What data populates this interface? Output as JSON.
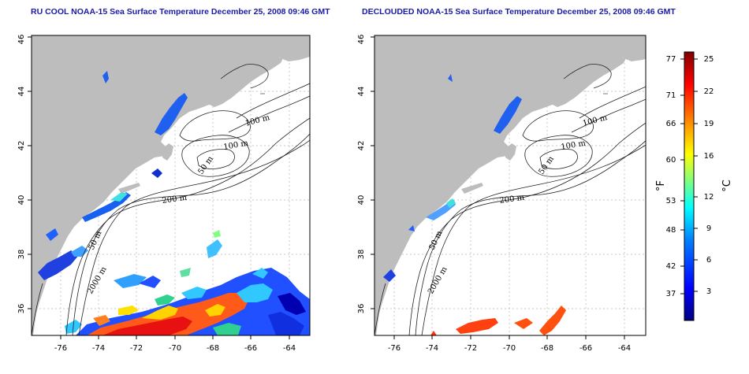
{
  "panels": [
    {
      "title": "RU COOL NOAA-15 Sea Surface Temperature December 25, 2008 09:46 GMT",
      "contour_labels": [
        "100 m",
        "100 m",
        "50 m",
        "200 m",
        "50 m",
        "2000 m"
      ]
    },
    {
      "title": "DECLOUDED NOAA-15 Sea Surface Temperature December 25, 2008 09:46 GMT",
      "contour_labels": [
        "100 m",
        "100 m",
        "50 m",
        "200 m",
        "50 m",
        "2000 m"
      ]
    }
  ],
  "axes": {
    "x_ticks": [
      "-76",
      "-74",
      "-72",
      "-70",
      "-68",
      "-66",
      "-64"
    ],
    "y_ticks": [
      "36",
      "38",
      "40",
      "42",
      "44",
      "46"
    ],
    "lon_range": [
      -77,
      -63
    ],
    "lat_range": [
      35,
      46
    ]
  },
  "colorbar": {
    "fahrenheit_ticks": [
      "77",
      "71",
      "66",
      "60",
      "53",
      "48",
      "42",
      "37"
    ],
    "celsius_ticks": [
      "25",
      "22",
      "19",
      "16",
      "12",
      "9",
      "6",
      "3"
    ],
    "fahrenheit_unit": "°F",
    "celsius_unit": "°C",
    "colors": [
      "#000080",
      "#0000ff",
      "#0080ff",
      "#00ffff",
      "#80ff80",
      "#ffff00",
      "#ff8000",
      "#ff0000",
      "#800000"
    ]
  },
  "colors": {
    "land": "#bdbdbd",
    "ocean": "#ffffff",
    "grid": "#b5b5b5",
    "title": "#1a1aa6"
  }
}
